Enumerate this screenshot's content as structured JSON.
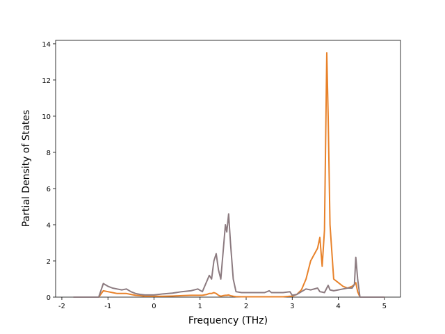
{
  "chart_data": {
    "type": "line",
    "x_label": "Frequency (THz)",
    "y_label": "Partial Density of States",
    "x": [
      -1.75,
      -1.2,
      -1.1,
      -1.0,
      -0.9,
      -0.8,
      -0.7,
      -0.6,
      -0.5,
      -0.4,
      -0.3,
      -0.2,
      0,
      0.2,
      0.4,
      0.6,
      0.8,
      0.95,
      1.05,
      1.15,
      1.2,
      1.25,
      1.3,
      1.35,
      1.4,
      1.45,
      1.5,
      1.55,
      1.58,
      1.62,
      1.66,
      1.72,
      1.78,
      1.9,
      2.1,
      2.4,
      2.5,
      2.55,
      2.8,
      2.95,
      3.0,
      3.1,
      3.2,
      3.3,
      3.4,
      3.55,
      3.6,
      3.65,
      3.7,
      3.75,
      3.78,
      3.82,
      3.9,
      4.0,
      4.1,
      4.2,
      4.3,
      4.35,
      4.38,
      4.42,
      4.47,
      5.0
    ],
    "series": [
      {
        "color": "#e8822a",
        "values": [
          0,
          0,
          0.35,
          0.3,
          0.25,
          0.2,
          0.2,
          0.2,
          0.15,
          0.1,
          0.08,
          0.05,
          0.05,
          0.05,
          0.06,
          0.08,
          0.1,
          0.1,
          0.1,
          0.15,
          0.2,
          0.2,
          0.25,
          0.2,
          0.1,
          0.05,
          0.08,
          0.1,
          0.1,
          0.12,
          0.08,
          0.05,
          0.03,
          0.02,
          0.02,
          0.02,
          0.02,
          0.02,
          0.02,
          0.05,
          0.05,
          0.15,
          0.4,
          1.0,
          2.0,
          2.7,
          3.3,
          1.7,
          3.7,
          13.5,
          10,
          4.0,
          1.0,
          0.8,
          0.6,
          0.5,
          0.6,
          0.7,
          0.8,
          0.3,
          0,
          0
        ]
      },
      {
        "color": "#8c7b80",
        "values": [
          0,
          0,
          0.75,
          0.6,
          0.5,
          0.45,
          0.4,
          0.45,
          0.3,
          0.2,
          0.15,
          0.12,
          0.12,
          0.18,
          0.22,
          0.3,
          0.35,
          0.45,
          0.3,
          0.9,
          1.2,
          1.0,
          2.0,
          2.4,
          1.5,
          1.0,
          2.5,
          4.0,
          3.6,
          4.6,
          3.0,
          1.0,
          0.3,
          0.25,
          0.25,
          0.25,
          0.35,
          0.25,
          0.25,
          0.3,
          0.1,
          0.15,
          0.3,
          0.45,
          0.4,
          0.5,
          0.3,
          0.28,
          0.25,
          0.5,
          0.65,
          0.4,
          0.35,
          0.4,
          0.45,
          0.5,
          0.5,
          0.7,
          2.2,
          1.0,
          0,
          0
        ]
      }
    ],
    "xlim": [
      -2.135,
      5.35
    ],
    "ylim": [
      0,
      14.19
    ],
    "xticks": [
      -2,
      -1,
      0,
      1,
      2,
      3,
      4,
      5
    ],
    "yticks": [
      0,
      2,
      4,
      6,
      8,
      10,
      12,
      14
    ],
    "grid": false
  }
}
